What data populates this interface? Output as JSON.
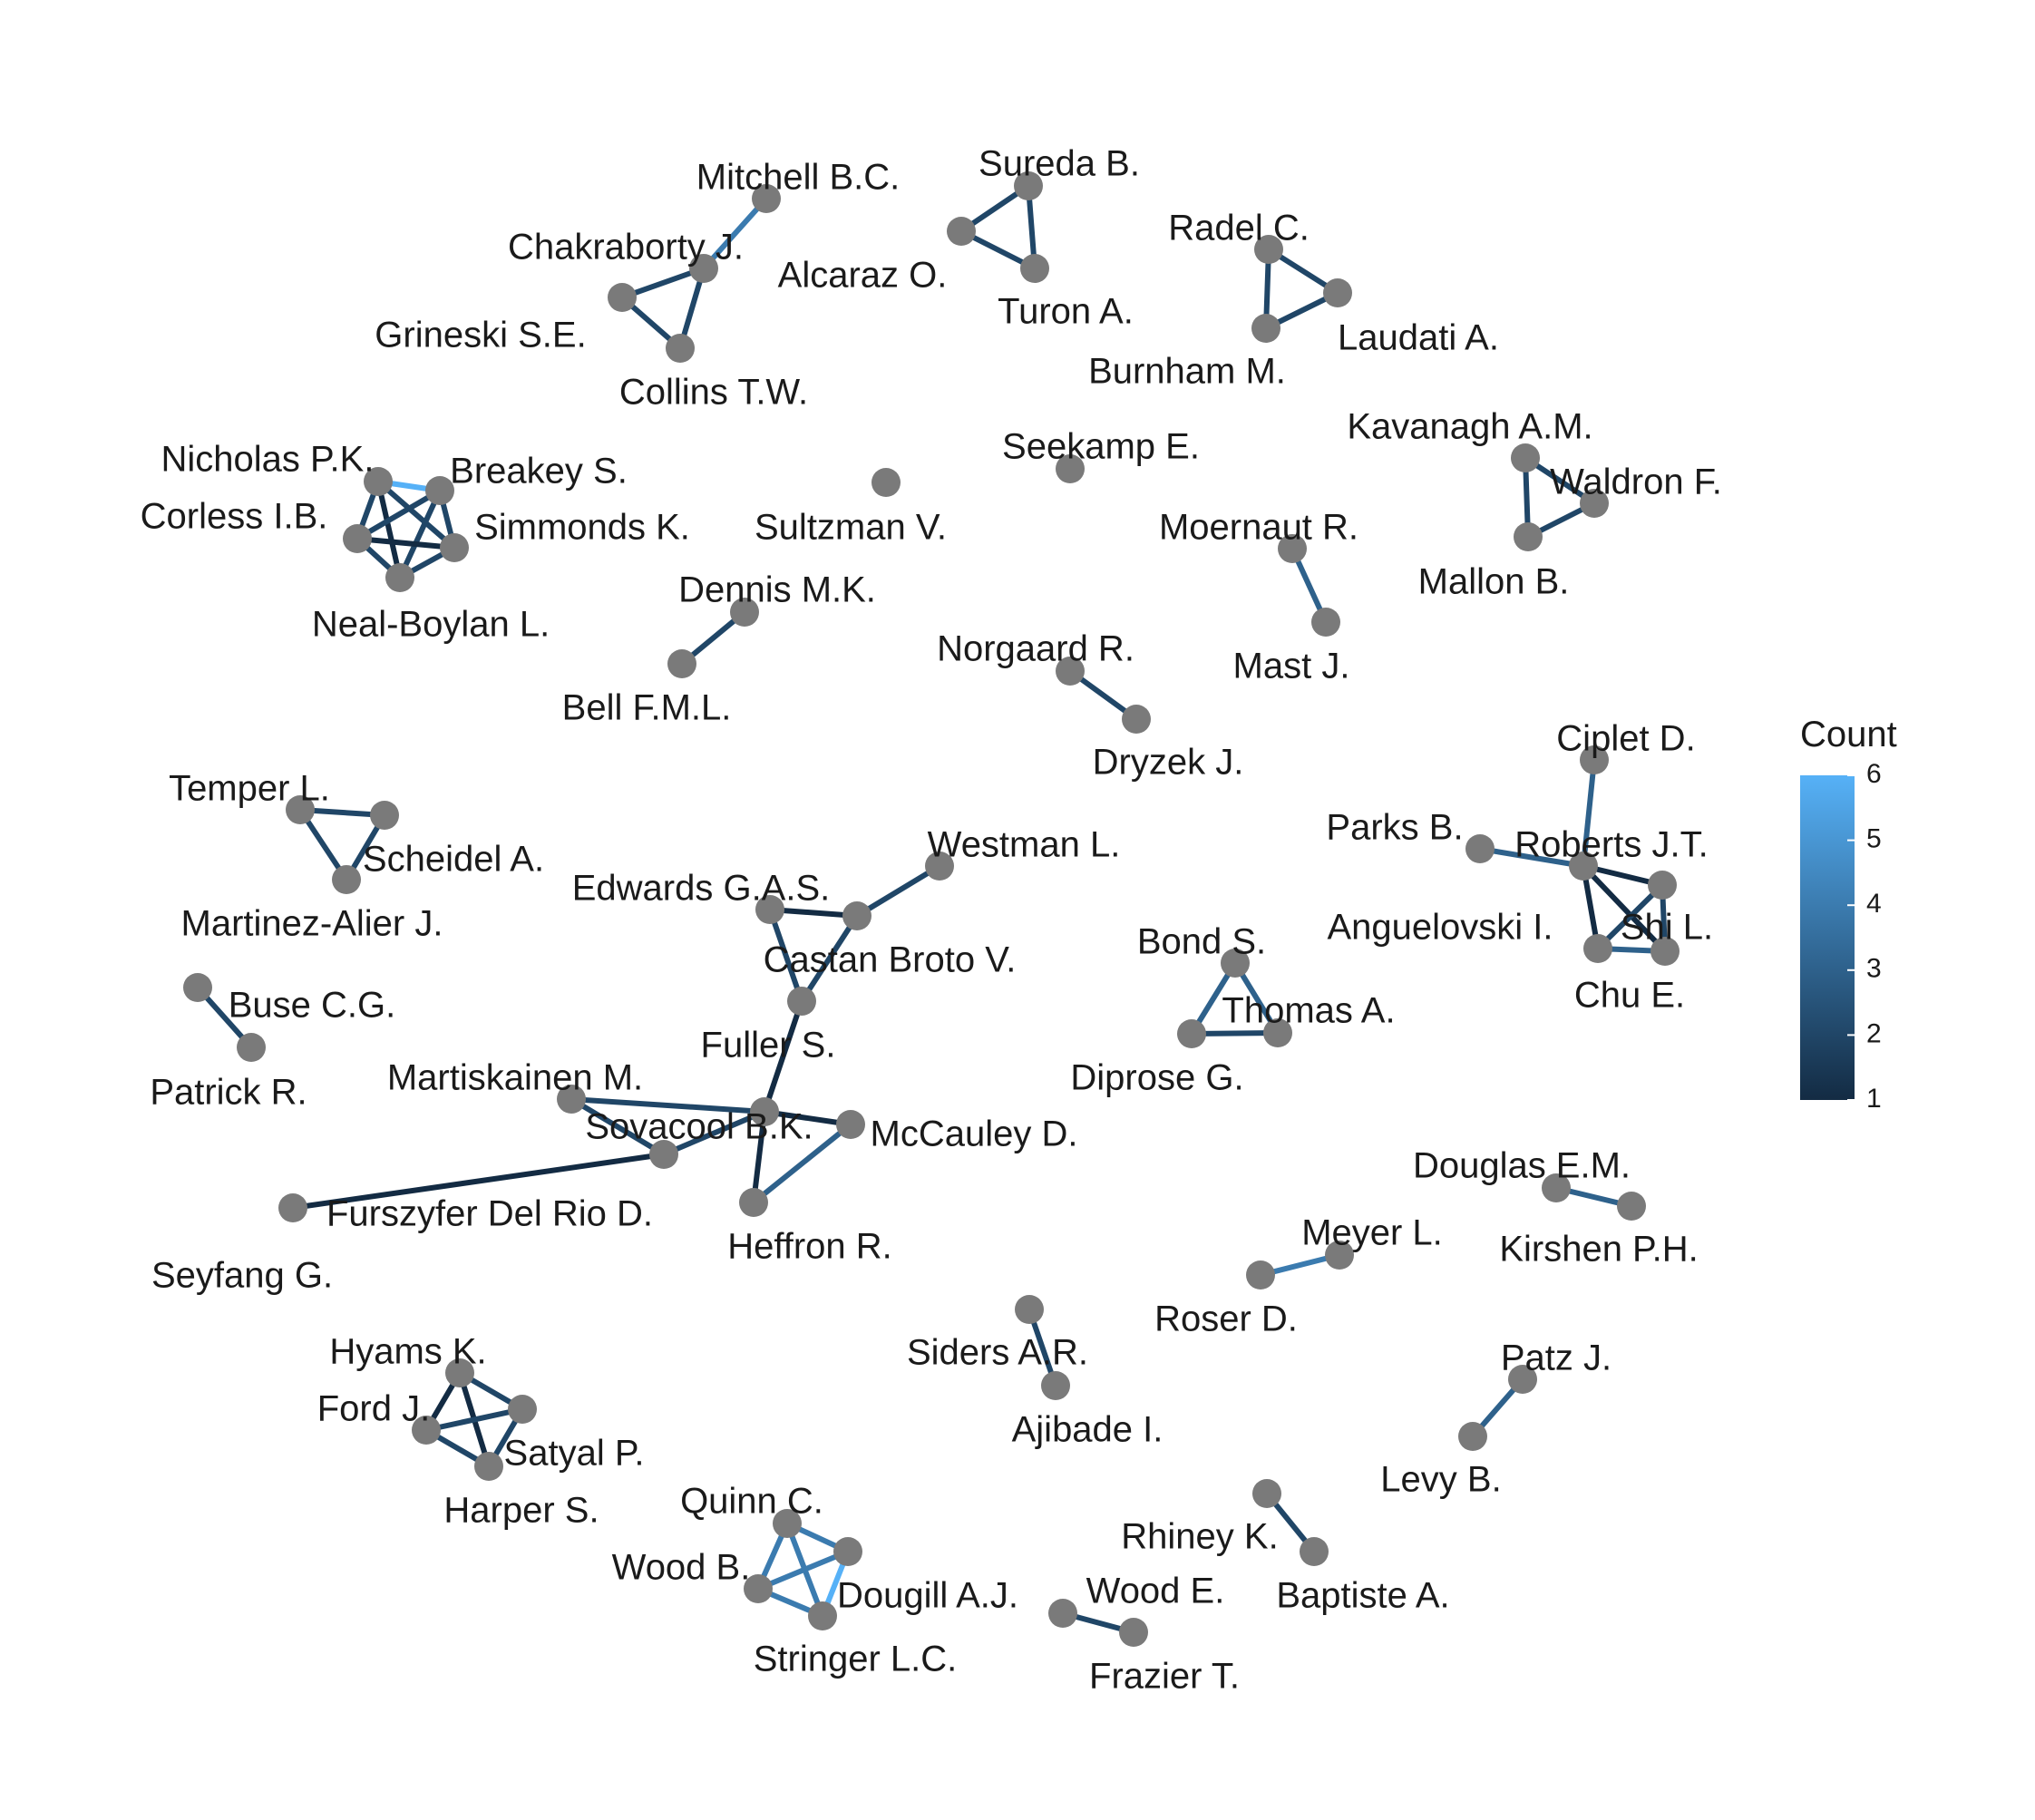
{
  "legend": {
    "title": "Count",
    "ticks": [
      6,
      5,
      4,
      3,
      2,
      1
    ],
    "scale_min": 1,
    "scale_max": 6,
    "color_low": "#132B43",
    "color_high": "#56B1F7"
  },
  "colors": {
    "node": "#7a7a7a",
    "background": "#ffffff",
    "text": "#1a1a1a"
  },
  "nodes": [
    {
      "id": "Mitchell B.C."
    },
    {
      "id": "Chakraborty J."
    },
    {
      "id": "Grineski S.E."
    },
    {
      "id": "Collins T.W."
    },
    {
      "id": "Sureda B."
    },
    {
      "id": "Alcaraz O."
    },
    {
      "id": "Turon A."
    },
    {
      "id": "Radel C."
    },
    {
      "id": "Laudati A."
    },
    {
      "id": "Burnham M."
    },
    {
      "id": "Kavanagh A.M."
    },
    {
      "id": "Waldron F."
    },
    {
      "id": "Mallon B."
    },
    {
      "id": "Seekamp E."
    },
    {
      "id": "Sultzman V."
    },
    {
      "id": "Nicholas P.K."
    },
    {
      "id": "Breakey S."
    },
    {
      "id": "Corless I.B."
    },
    {
      "id": "Simmonds K."
    },
    {
      "id": "Neal-Boylan L."
    },
    {
      "id": "Moernaut R."
    },
    {
      "id": "Mast J."
    },
    {
      "id": "Dennis M.K."
    },
    {
      "id": "Bell F.M.L."
    },
    {
      "id": "Norgaard R."
    },
    {
      "id": "Dryzek J."
    },
    {
      "id": "Ciplet D."
    },
    {
      "id": "Parks B."
    },
    {
      "id": "Roberts J.T."
    },
    {
      "id": "Anguelovski I."
    },
    {
      "id": "Shi L."
    },
    {
      "id": "Chu E."
    },
    {
      "id": "Temper L."
    },
    {
      "id": "Scheidel A."
    },
    {
      "id": "Martinez-Alier J."
    },
    {
      "id": "Westman L."
    },
    {
      "id": "Edwards G.A.S."
    },
    {
      "id": "Castan Broto V."
    },
    {
      "id": "Fuller S."
    },
    {
      "id": "Bond S."
    },
    {
      "id": "Thomas A."
    },
    {
      "id": "Diprose G."
    },
    {
      "id": "Buse C.G."
    },
    {
      "id": "Patrick R."
    },
    {
      "id": "Martiskainen M."
    },
    {
      "id": "Sovacool B.K."
    },
    {
      "id": "McCauley D."
    },
    {
      "id": "Heffron R."
    },
    {
      "id": "Furszyfer Del Rio D."
    },
    {
      "id": "Seyfang G."
    },
    {
      "id": "Douglas E.M."
    },
    {
      "id": "Kirshen P.H."
    },
    {
      "id": "Meyer L."
    },
    {
      "id": "Roser D."
    },
    {
      "id": "Siders A.R."
    },
    {
      "id": "Ajibade I."
    },
    {
      "id": "Patz J."
    },
    {
      "id": "Levy B."
    },
    {
      "id": "Hyams K."
    },
    {
      "id": "Ford J."
    },
    {
      "id": "Satyal P."
    },
    {
      "id": "Harper S."
    },
    {
      "id": "Quinn C."
    },
    {
      "id": "Wood B."
    },
    {
      "id": "Dougill A.J."
    },
    {
      "id": "Stringer L.C."
    },
    {
      "id": "Rhiney K."
    },
    {
      "id": "Baptiste A."
    },
    {
      "id": "Wood E."
    },
    {
      "id": "Frazier T."
    }
  ],
  "edges": [
    {
      "source": "Mitchell B.C.",
      "target": "Chakraborty J.",
      "count": 4
    },
    {
      "source": "Chakraborty J.",
      "target": "Grineski S.E.",
      "count": 2
    },
    {
      "source": "Chakraborty J.",
      "target": "Collins T.W.",
      "count": 2
    },
    {
      "source": "Grineski S.E.",
      "target": "Collins T.W.",
      "count": 2
    },
    {
      "source": "Sureda B.",
      "target": "Alcaraz O.",
      "count": 2
    },
    {
      "source": "Sureda B.",
      "target": "Turon A.",
      "count": 2
    },
    {
      "source": "Alcaraz O.",
      "target": "Turon A.",
      "count": 2
    },
    {
      "source": "Radel C.",
      "target": "Laudati A.",
      "count": 2
    },
    {
      "source": "Radel C.",
      "target": "Burnham M.",
      "count": 2
    },
    {
      "source": "Laudati A.",
      "target": "Burnham M.",
      "count": 2
    },
    {
      "source": "Kavanagh A.M.",
      "target": "Waldron F.",
      "count": 2
    },
    {
      "source": "Kavanagh A.M.",
      "target": "Mallon B.",
      "count": 2
    },
    {
      "source": "Waldron F.",
      "target": "Mallon B.",
      "count": 2
    },
    {
      "source": "Nicholas P.K.",
      "target": "Breakey S.",
      "count": 6
    },
    {
      "source": "Nicholas P.K.",
      "target": "Corless I.B.",
      "count": 2
    },
    {
      "source": "Nicholas P.K.",
      "target": "Simmonds K.",
      "count": 2
    },
    {
      "source": "Nicholas P.K.",
      "target": "Neal-Boylan L.",
      "count": 1
    },
    {
      "source": "Breakey S.",
      "target": "Corless I.B.",
      "count": 2
    },
    {
      "source": "Breakey S.",
      "target": "Simmonds K.",
      "count": 2
    },
    {
      "source": "Breakey S.",
      "target": "Neal-Boylan L.",
      "count": 2
    },
    {
      "source": "Corless I.B.",
      "target": "Simmonds K.",
      "count": 1
    },
    {
      "source": "Corless I.B.",
      "target": "Neal-Boylan L.",
      "count": 2
    },
    {
      "source": "Simmonds K.",
      "target": "Neal-Boylan L.",
      "count": 2
    },
    {
      "source": "Moernaut R.",
      "target": "Mast J.",
      "count": 3
    },
    {
      "source": "Dennis M.K.",
      "target": "Bell F.M.L.",
      "count": 2
    },
    {
      "source": "Norgaard R.",
      "target": "Dryzek J.",
      "count": 2
    },
    {
      "source": "Ciplet D.",
      "target": "Roberts J.T.",
      "count": 3
    },
    {
      "source": "Parks B.",
      "target": "Roberts J.T.",
      "count": 3
    },
    {
      "source": "Roberts J.T.",
      "target": "Shi L.",
      "count": 1
    },
    {
      "source": "Roberts J.T.",
      "target": "Anguelovski I.",
      "count": 1
    },
    {
      "source": "Roberts J.T.",
      "target": "Chu E.",
      "count": 1
    },
    {
      "source": "Anguelovski I.",
      "target": "Shi L.",
      "count": 2
    },
    {
      "source": "Anguelovski I.",
      "target": "Chu E.",
      "count": 3
    },
    {
      "source": "Shi L.",
      "target": "Chu E.",
      "count": 2
    },
    {
      "source": "Temper L.",
      "target": "Scheidel A.",
      "count": 2
    },
    {
      "source": "Temper L.",
      "target": "Martinez-Alier J.",
      "count": 2
    },
    {
      "source": "Scheidel A.",
      "target": "Martinez-Alier J.",
      "count": 2
    },
    {
      "source": "Westman L.",
      "target": "Castan Broto V.",
      "count": 2
    },
    {
      "source": "Edwards G.A.S.",
      "target": "Castan Broto V.",
      "count": 1
    },
    {
      "source": "Edwards G.A.S.",
      "target": "Fuller S.",
      "count": 2
    },
    {
      "source": "Castan Broto V.",
      "target": "Fuller S.",
      "count": 2
    },
    {
      "source": "Fuller S.",
      "target": "Sovacool B.K.",
      "count": 1
    },
    {
      "source": "Bond S.",
      "target": "Thomas A.",
      "count": 3
    },
    {
      "source": "Bond S.",
      "target": "Diprose G.",
      "count": 3
    },
    {
      "source": "Thomas A.",
      "target": "Diprose G.",
      "count": 2
    },
    {
      "source": "Buse C.G.",
      "target": "Patrick R.",
      "count": 2
    },
    {
      "source": "Martiskainen M.",
      "target": "Sovacool B.K.",
      "count": 2
    },
    {
      "source": "Martiskainen M.",
      "target": "Sovacool B.K.",
      "count": 2,
      "via": "Martiskainen M."
    },
    {
      "source": "Martiskainen M.",
      "target": "Furszyfer Del Rio D.",
      "count": 2
    },
    {
      "source": "Sovacool B.K.",
      "target": "Heffron R.",
      "count": 1
    },
    {
      "source": "Sovacool B.K.",
      "target": "McCauley D.",
      "count": 1
    },
    {
      "source": "Sovacool B.K.",
      "target": "Furszyfer Del Rio D.",
      "count": 2
    },
    {
      "source": "Heffron R.",
      "target": "McCauley D.",
      "count": 3
    },
    {
      "source": "Seyfang G.",
      "target": "Furszyfer Del Rio D.",
      "count": 1
    },
    {
      "source": "Douglas E.M.",
      "target": "Kirshen P.H.",
      "count": 3
    },
    {
      "source": "Meyer L.",
      "target": "Roser D.",
      "count": 4
    },
    {
      "source": "Siders A.R.",
      "target": "Ajibade I.",
      "count": 2
    },
    {
      "source": "Patz J.",
      "target": "Levy B.",
      "count": 3
    },
    {
      "source": "Hyams K.",
      "target": "Ford J.",
      "count": 1
    },
    {
      "source": "Hyams K.",
      "target": "Satyal P.",
      "count": 2
    },
    {
      "source": "Hyams K.",
      "target": "Harper S.",
      "count": 1
    },
    {
      "source": "Ford J.",
      "target": "Satyal P.",
      "count": 2
    },
    {
      "source": "Ford J.",
      "target": "Harper S.",
      "count": 2
    },
    {
      "source": "Satyal P.",
      "target": "Harper S.",
      "count": 2
    },
    {
      "source": "Quinn C.",
      "target": "Wood B.",
      "count": 4
    },
    {
      "source": "Quinn C.",
      "target": "Dougill A.J.",
      "count": 4
    },
    {
      "source": "Quinn C.",
      "target": "Stringer L.C.",
      "count": 4
    },
    {
      "source": "Wood B.",
      "target": "Dougill A.J.",
      "count": 4
    },
    {
      "source": "Wood B.",
      "target": "Stringer L.C.",
      "count": 4
    },
    {
      "source": "Dougill A.J.",
      "target": "Stringer L.C.",
      "count": 6
    },
    {
      "source": "Rhiney K.",
      "target": "Baptiste A.",
      "count": 2
    },
    {
      "source": "Wood E.",
      "target": "Frazier T.",
      "count": 2
    }
  ]
}
